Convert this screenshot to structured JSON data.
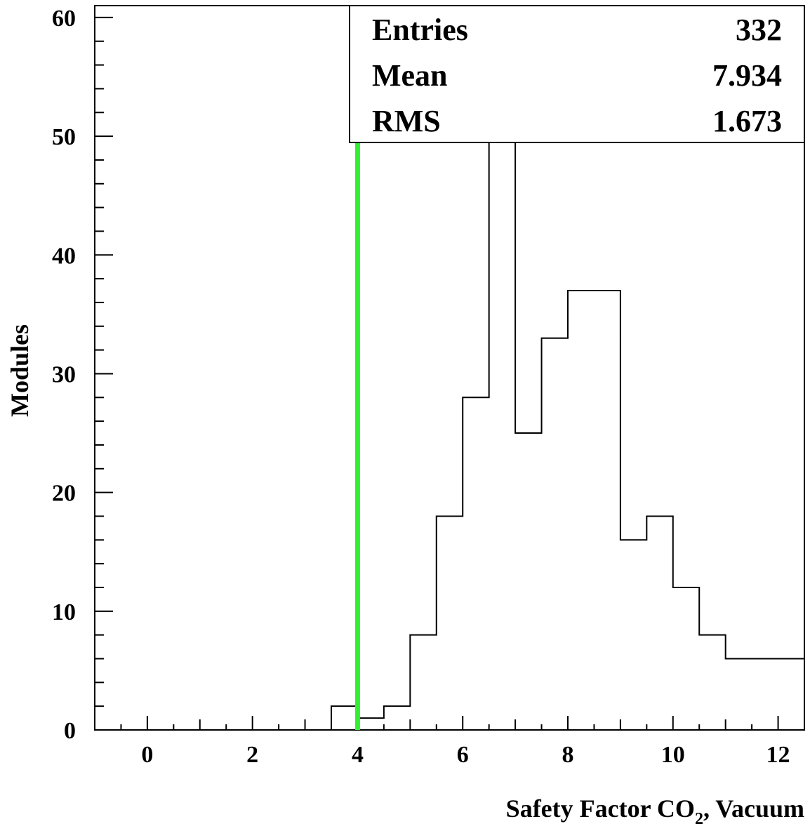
{
  "chart_data": {
    "type": "histogram",
    "xlabel_main": "Safety Factor CO",
    "xlabel_sub": "2",
    "xlabel_tail": ", Vacuum",
    "ylabel": "Modules",
    "xlim": [
      -1,
      12.5
    ],
    "ylim": [
      0,
      61
    ],
    "x_ticks": [
      0,
      2,
      4,
      6,
      8,
      10,
      12
    ],
    "x_tick_labels": [
      "0",
      "2",
      "4",
      "6",
      "8",
      "10",
      "12"
    ],
    "y_ticks": [
      0,
      10,
      20,
      30,
      40,
      50,
      60
    ],
    "y_tick_labels": [
      "0",
      "10",
      "20",
      "30",
      "40",
      "50",
      "60"
    ],
    "bin_width": 0.5,
    "bin_edges": [
      3.5,
      4.0,
      4.5,
      5.0,
      5.5,
      6.0,
      6.5,
      7.0,
      7.5,
      8.0,
      8.5,
      9.0,
      9.5,
      10.0,
      10.5,
      11.0,
      11.5,
      12.0,
      12.5
    ],
    "values": [
      2,
      1,
      2,
      8,
      18,
      28,
      55,
      25,
      33,
      37,
      37,
      16,
      18,
      12,
      8,
      6,
      6,
      6
    ],
    "threshold_line": {
      "x": 4,
      "color": "#33ee33"
    },
    "stats": [
      {
        "label": "Entries",
        "value": "332"
      },
      {
        "label": "Mean",
        "value": "7.934"
      },
      {
        "label": "RMS",
        "value": "1.673"
      }
    ],
    "grid": false
  }
}
